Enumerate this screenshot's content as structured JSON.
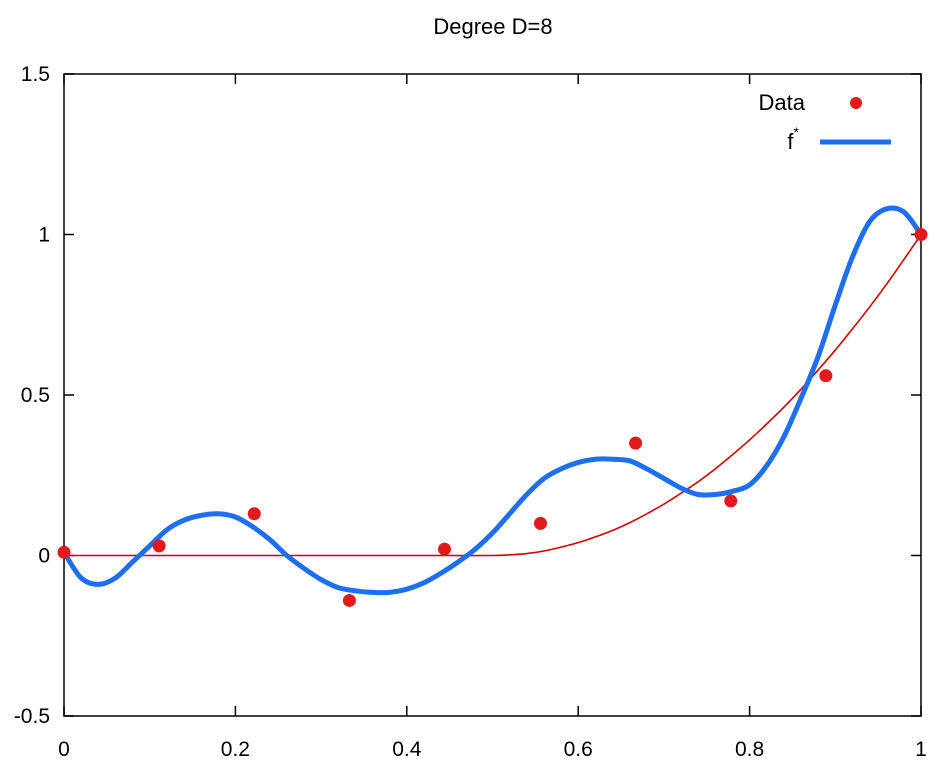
{
  "chart_data": {
    "type": "scatter",
    "title": "Degree D=8",
    "xlabel": "",
    "ylabel": "",
    "xlim": [
      0,
      1
    ],
    "ylim": [
      -0.5,
      1.5
    ],
    "x_ticks": [
      0,
      0.2,
      0.4,
      0.6,
      0.8,
      1
    ],
    "x_tick_labels": [
      "0",
      "0.2",
      "0.4",
      "0.6",
      "0.8",
      "1"
    ],
    "y_ticks": [
      -0.5,
      0,
      0.5,
      1,
      1.5
    ],
    "y_tick_labels": [
      "-0.5",
      "0",
      "0.5",
      "1",
      "1.5"
    ],
    "grid": false,
    "legend_position": "top-right",
    "series": [
      {
        "name": "Data",
        "kind": "points",
        "color": "#e31a1c",
        "x": [
          0,
          0.111,
          0.222,
          0.333,
          0.444,
          0.556,
          0.667,
          0.778,
          0.889,
          1.0
        ],
        "y": [
          0.01,
          0.03,
          0.13,
          -0.14,
          0.02,
          0.1,
          0.35,
          0.17,
          0.56,
          1.0
        ]
      },
      {
        "name": "f",
        "name_superscript": "*",
        "kind": "line",
        "color": "#1e6ff0",
        "x": [
          0,
          0.02,
          0.04,
          0.06,
          0.08,
          0.1,
          0.12,
          0.14,
          0.16,
          0.18,
          0.2,
          0.22,
          0.24,
          0.26,
          0.28,
          0.3,
          0.32,
          0.34,
          0.36,
          0.38,
          0.4,
          0.42,
          0.44,
          0.46,
          0.48,
          0.5,
          0.52,
          0.54,
          0.56,
          0.58,
          0.6,
          0.62,
          0.64,
          0.66,
          0.68,
          0.7,
          0.72,
          0.74,
          0.76,
          0.78,
          0.8,
          0.82,
          0.84,
          0.86,
          0.88,
          0.9,
          0.92,
          0.94,
          0.96,
          0.98,
          1.0
        ],
        "y": [
          0.01,
          -0.07,
          -0.09,
          -0.07,
          -0.02,
          0.03,
          0.08,
          0.11,
          0.125,
          0.13,
          0.12,
          0.09,
          0.05,
          0.0,
          -0.04,
          -0.075,
          -0.1,
          -0.11,
          -0.115,
          -0.115,
          -0.105,
          -0.085,
          -0.055,
          -0.02,
          0.02,
          0.07,
          0.13,
          0.19,
          0.24,
          0.27,
          0.29,
          0.3,
          0.3,
          0.295,
          0.27,
          0.24,
          0.21,
          0.19,
          0.19,
          0.2,
          0.22,
          0.28,
          0.37,
          0.49,
          0.62,
          0.78,
          0.93,
          1.04,
          1.08,
          1.07,
          1.0
        ]
      },
      {
        "name": "",
        "kind": "line",
        "color": "#d00000",
        "x": [
          0,
          0.05,
          0.1,
          0.15,
          0.2,
          0.25,
          0.3,
          0.35,
          0.4,
          0.45,
          0.5,
          0.52,
          0.54,
          0.56,
          0.58,
          0.6,
          0.62,
          0.64,
          0.66,
          0.68,
          0.7,
          0.72,
          0.74,
          0.76,
          0.78,
          0.8,
          0.82,
          0.84,
          0.86,
          0.88,
          0.9,
          0.92,
          0.94,
          0.96,
          0.98,
          1.0
        ],
        "y": [
          0,
          0,
          0,
          0,
          0,
          0,
          0,
          0,
          0,
          0,
          0,
          0.002,
          0.006,
          0.014,
          0.026,
          0.04,
          0.058,
          0.078,
          0.102,
          0.13,
          0.16,
          0.194,
          0.23,
          0.27,
          0.314,
          0.36,
          0.41,
          0.462,
          0.518,
          0.578,
          0.64,
          0.706,
          0.774,
          0.846,
          0.922,
          1.0
        ]
      }
    ]
  }
}
